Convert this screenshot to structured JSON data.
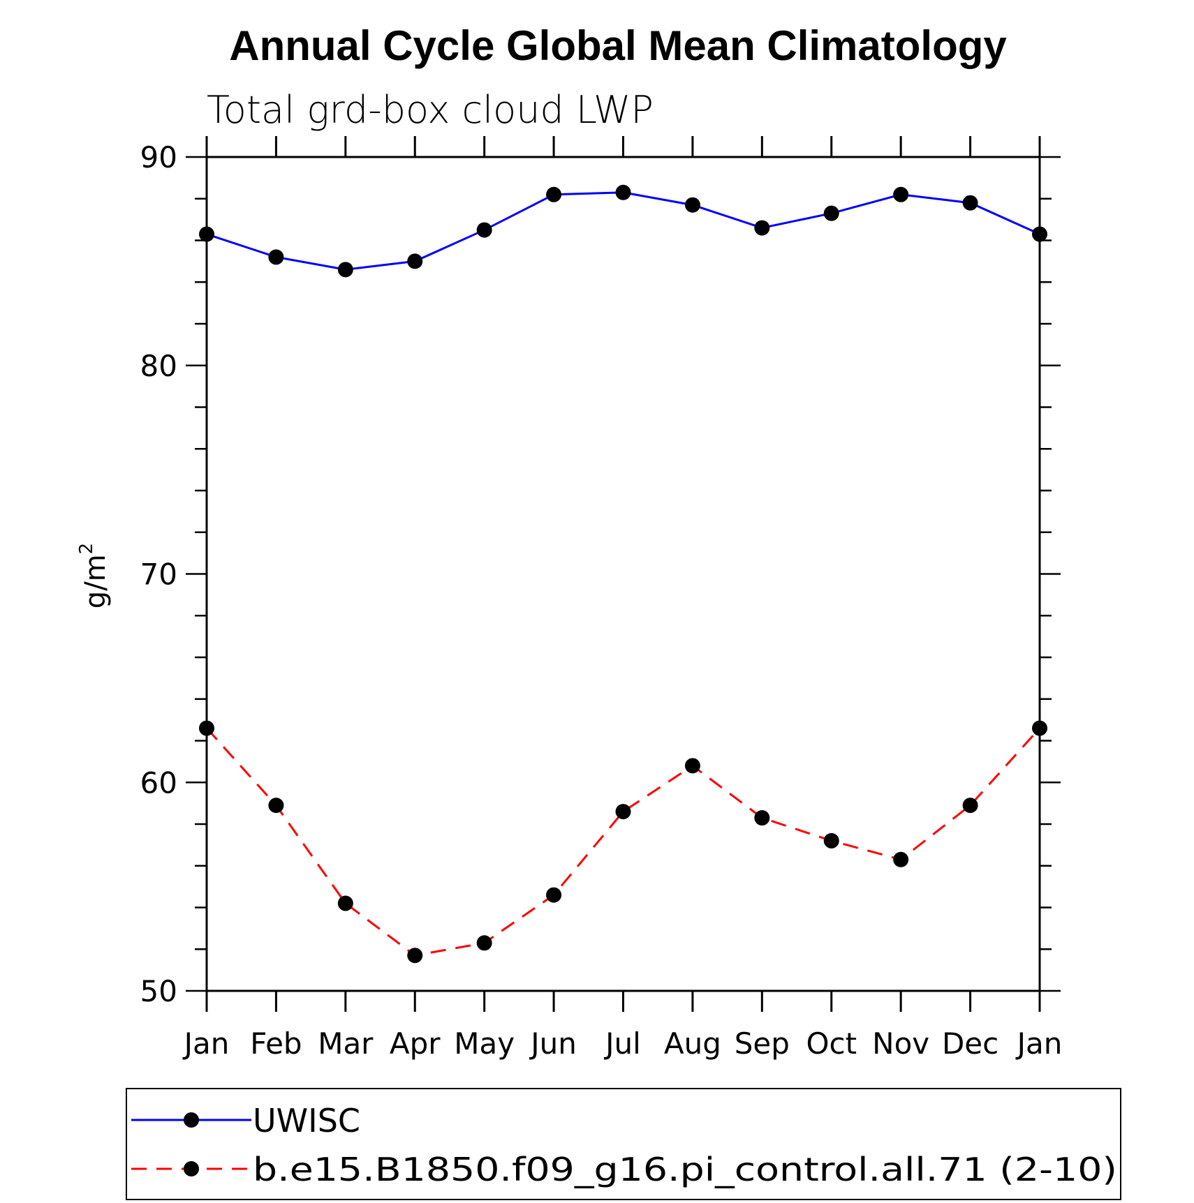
{
  "chart_data": {
    "type": "line",
    "title": "Annual Cycle Global Mean Climatology",
    "subtitle": "Total grd-box cloud LWP",
    "ylabel_base": "g/m",
    "ylabel_sup": "2",
    "categories": [
      "Jan",
      "Feb",
      "Mar",
      "Apr",
      "May",
      "Jun",
      "Jul",
      "Aug",
      "Sep",
      "Oct",
      "Nov",
      "Dec",
      "Jan"
    ],
    "ylim": [
      50,
      90
    ],
    "yticks": [
      50,
      60,
      70,
      80,
      90
    ],
    "yticks_minor_step": 2,
    "series": [
      {
        "name": "UWISC",
        "color": "#0000ff",
        "dash": "solid",
        "values": [
          86.3,
          85.2,
          84.6,
          85.0,
          86.5,
          88.2,
          88.3,
          87.7,
          86.6,
          87.3,
          88.2,
          87.8,
          86.3
        ]
      },
      {
        "name": "b.e15.B1850.f09_g16.pi_control.all.71 (2-10)",
        "color": "#ff0000",
        "dash": "dashed",
        "values": [
          62.6,
          58.9,
          54.2,
          51.7,
          52.3,
          54.6,
          58.6,
          60.8,
          58.3,
          57.2,
          56.3,
          58.9,
          62.6
        ]
      }
    ],
    "marker_color": "#000000",
    "legend_position": "bottom"
  }
}
